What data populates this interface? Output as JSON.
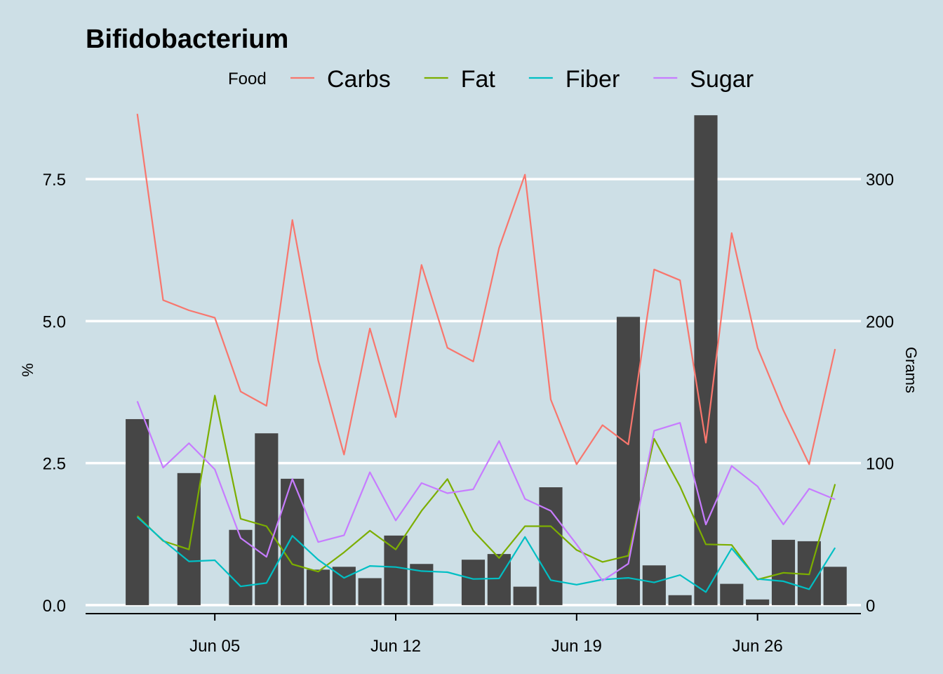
{
  "chart_data": {
    "type": "line",
    "title": "Bifidobacterium",
    "legend": {
      "title": "Food",
      "placement": "top"
    },
    "x": [
      "2023-06-02",
      "2023-06-03",
      "2023-06-04",
      "2023-06-05",
      "2023-06-06",
      "2023-06-07",
      "2023-06-08",
      "2023-06-09",
      "2023-06-10",
      "2023-06-11",
      "2023-06-12",
      "2023-06-13",
      "2023-06-14",
      "2023-06-15",
      "2023-06-16",
      "2023-06-17",
      "2023-06-18",
      "2023-06-19",
      "2023-06-20",
      "2023-06-21",
      "2023-06-22",
      "2023-06-23",
      "2023-06-24",
      "2023-06-25",
      "2023-06-26",
      "2023-06-27",
      "2023-06-28",
      "2023-06-29"
    ],
    "x_ticks": [
      {
        "date": "2023-06-05",
        "label": "Jun 05"
      },
      {
        "date": "2023-06-12",
        "label": "Jun 12"
      },
      {
        "date": "2023-06-19",
        "label": "Jun 19"
      },
      {
        "date": "2023-06-26",
        "label": "Jun 26"
      }
    ],
    "xlim": [
      "2023-05-31",
      "2023-06-30"
    ],
    "ylabel": "%",
    "ylim": [
      -0.1,
      8.8
    ],
    "y_ticks": [
      "0.0",
      "2.5",
      "5.0",
      "7.5"
    ],
    "y2label": "Grams",
    "y2_ticks": [
      "0",
      "100",
      "200",
      "300"
    ],
    "grid": "horizontal",
    "series": [
      {
        "name": "Carbs",
        "color": "#f8766d",
        "values": [
          8.65,
          5.37,
          5.19,
          5.06,
          3.76,
          3.51,
          6.78,
          4.31,
          2.65,
          4.87,
          3.31,
          5.99,
          4.53,
          4.29,
          6.29,
          7.58,
          3.62,
          2.48,
          3.17,
          2.83,
          5.91,
          5.72,
          2.86,
          6.55,
          4.53,
          3.43,
          2.48,
          4.51
        ]
      },
      {
        "name": "Fat",
        "color": "#7cae00",
        "values": [
          1.57,
          1.13,
          0.98,
          3.69,
          1.52,
          1.39,
          0.72,
          0.59,
          0.93,
          1.31,
          0.98,
          1.66,
          2.22,
          1.31,
          0.83,
          1.39,
          1.39,
          0.97,
          0.76,
          0.87,
          2.93,
          2.09,
          1.07,
          1.06,
          0.45,
          0.57,
          0.54,
          2.13
        ]
      },
      {
        "name": "Fiber",
        "color": "#00bfc4",
        "values": [
          1.55,
          1.14,
          0.77,
          0.79,
          0.33,
          0.39,
          1.22,
          0.8,
          0.48,
          0.69,
          0.67,
          0.6,
          0.58,
          0.46,
          0.47,
          1.2,
          0.44,
          0.36,
          0.45,
          0.48,
          0.4,
          0.53,
          0.23,
          1.0,
          0.46,
          0.42,
          0.28,
          1.01
        ]
      },
      {
        "name": "Sugar",
        "color": "#c77cff",
        "values": [
          3.59,
          2.42,
          2.85,
          2.39,
          1.18,
          0.85,
          2.22,
          1.11,
          1.23,
          2.34,
          1.49,
          2.15,
          1.97,
          2.04,
          2.89,
          1.87,
          1.66,
          1.07,
          0.43,
          0.73,
          3.07,
          3.21,
          1.42,
          2.45,
          2.09,
          1.42,
          2.05,
          1.86
        ]
      }
    ],
    "bars": {
      "color": "#464646",
      "unit": "Grams",
      "values": [
        131,
        0,
        93,
        0,
        53,
        121,
        89,
        25,
        27,
        19,
        49,
        29,
        0,
        32,
        36,
        13,
        83,
        0,
        0,
        203,
        28,
        7,
        345,
        15,
        4,
        46,
        45,
        27
      ]
    }
  }
}
